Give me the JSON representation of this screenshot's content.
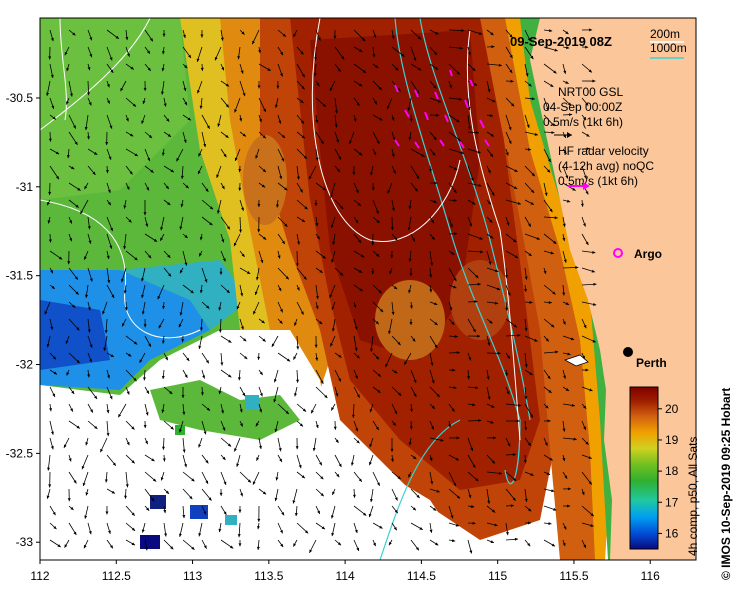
{
  "title": "09-Sep-2019 08Z",
  "credit": "© IMOS 10-Sep-2019 09:25 Hobart",
  "axes": {
    "x_ticks": [
      "112",
      "112.5",
      "113",
      "113.5",
      "114",
      "114.5",
      "115",
      "115.5",
      "116"
    ],
    "y_ticks": [
      "-30.5",
      "-31",
      "-31.5",
      "-32",
      "-32.5",
      "-33"
    ],
    "x_range": [
      112,
      116.3
    ],
    "y_range": [
      -33.1,
      -30.05
    ]
  },
  "isobaths": {
    "label_200": "200m",
    "label_1000": "1000m",
    "color_200": "#ffffff",
    "color_1000": "#40d0d0"
  },
  "legend": {
    "model_title": "NRT00 GSL",
    "model_date": "04-Sep 00:00Z",
    "model_scale": "0.5m/s (1kt 6h)",
    "radar_title": "HF radar velocity",
    "radar_sub": "(4-12h avg) noQC",
    "radar_scale": "0.5m/s (1kt 6h)",
    "radar_color": "#ff00ff",
    "argo_label": "Argo"
  },
  "places": {
    "perth": "Perth"
  },
  "colorbar": {
    "label": "4h comp, p50, All Sats",
    "ticks": [
      "20",
      "19",
      "18",
      "17",
      "16"
    ],
    "range": [
      15.5,
      20.7
    ],
    "colors": [
      "#0a0a80",
      "#0050d8",
      "#00a0f0",
      "#20c8a0",
      "#30b030",
      "#70c020",
      "#d0d020",
      "#f0a000",
      "#d06010",
      "#a02000",
      "#800000"
    ]
  },
  "colors": {
    "land": "#fbc79a",
    "nodata": "#ffffff",
    "arrow": "#000000"
  }
}
